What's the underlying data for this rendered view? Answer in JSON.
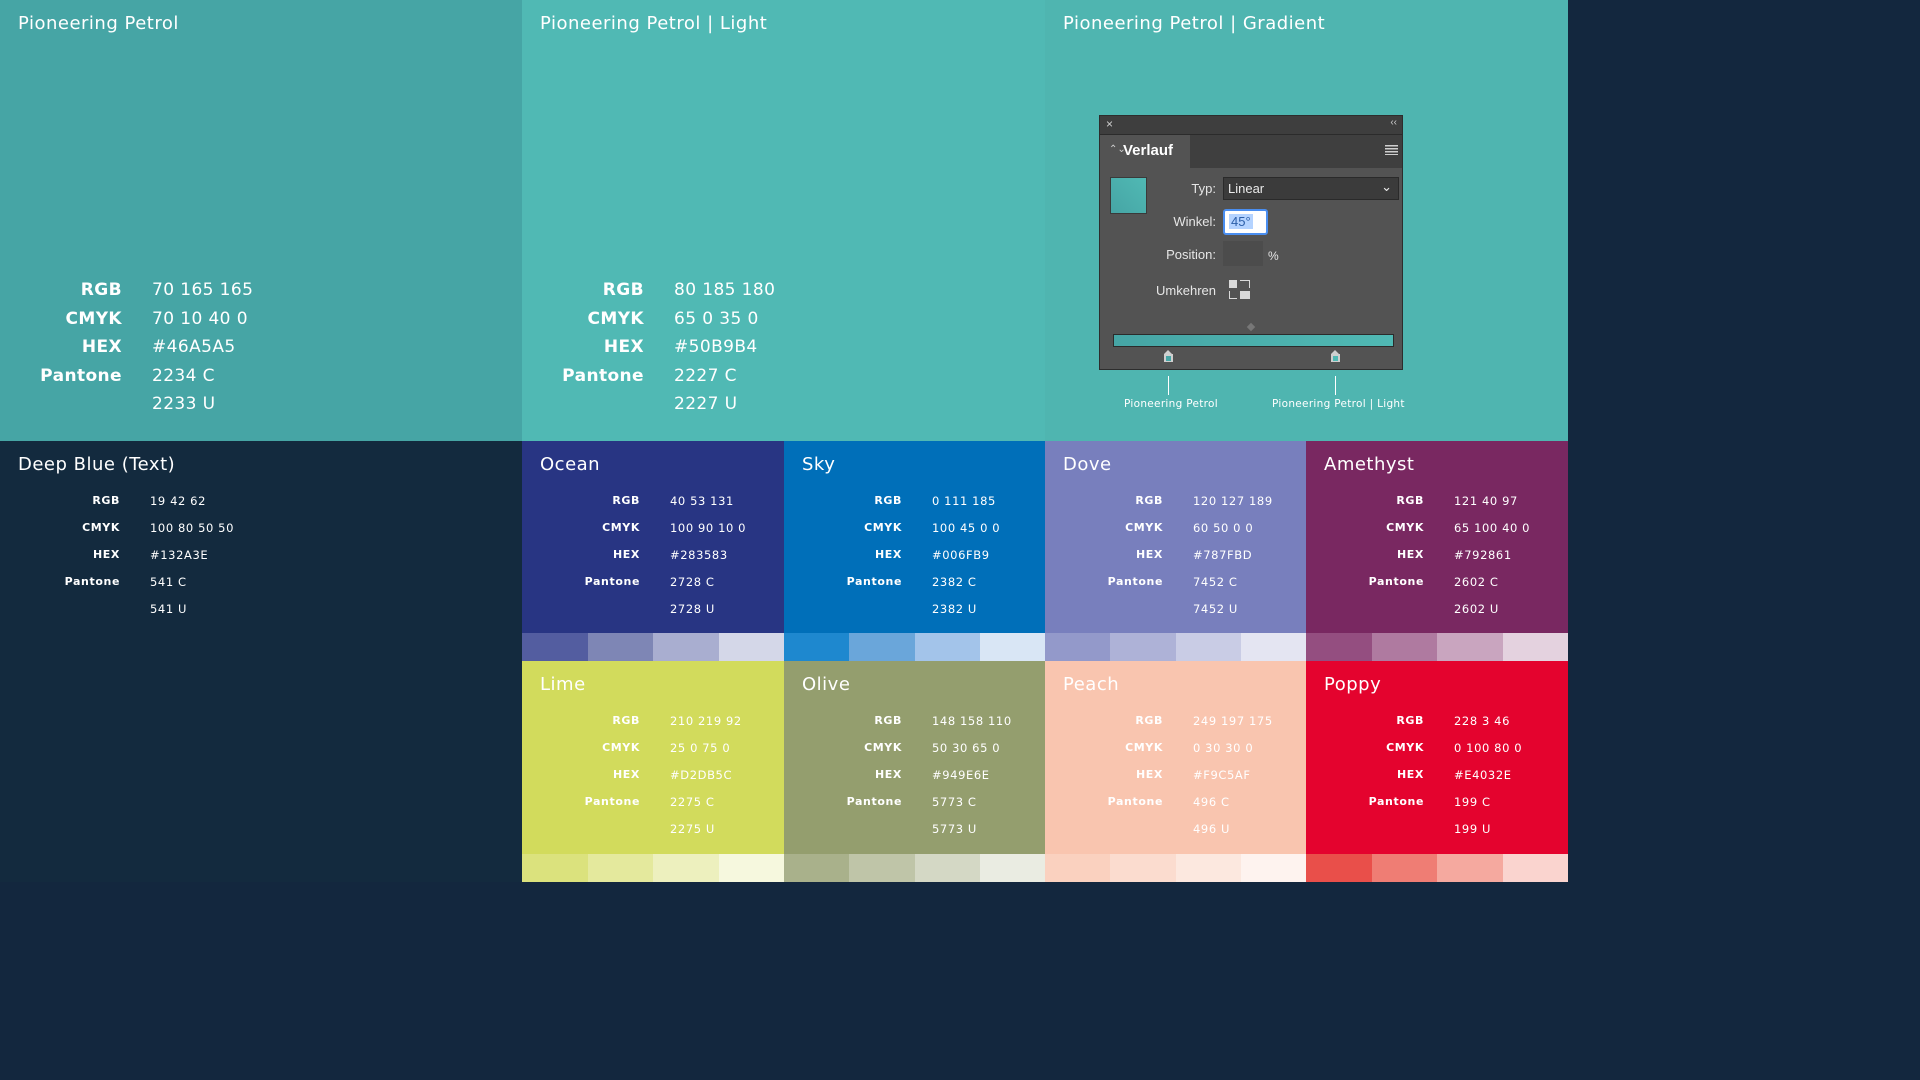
{
  "top_panels": [
    {
      "title": "Pioneering Petrol",
      "bg": "#46A5A5",
      "rgb": "70 165 165",
      "cmyk": "70 10 40 0",
      "hex": "#46A5A5",
      "pantone_c": "2234 C",
      "pantone_u": "2233 U"
    },
    {
      "title": "Pioneering Petrol | Light",
      "bg": "#50B9B4",
      "rgb": "80 185 180",
      "cmyk": "65 0 35 0",
      "hex": "#50B9B4",
      "pantone_c": "2227 C",
      "pantone_u": "2227 U"
    }
  ],
  "spec_labels": {
    "rgb": "RGB",
    "cmyk": "CMYK",
    "hex": "HEX",
    "pantone": "Pantone"
  },
  "gradient_panel": {
    "title": "Pioneering Petrol | Gradient",
    "bg": "#4FB5B0",
    "dialog": {
      "close_icon": "×",
      "collapse_icon": "‹‹",
      "tab_arrows": "⌃⌄",
      "tab_label": "Verlauf",
      "typ_label": "Typ:",
      "typ_value": "Linear",
      "winkel_label": "Winkel:",
      "winkel_value": "45°",
      "position_label": "Position:",
      "position_unit": "%",
      "umkehren_label": "Umkehren"
    },
    "stop_left_label": "Pioneering Petrol",
    "stop_right_label": "Pioneering Petrol | Light"
  },
  "deep_blue": {
    "title": "Deep Blue (Text)",
    "bg": "#132A3E",
    "rgb": "19 42 62",
    "cmyk": "100 80 50 50",
    "hex": "#132A3E",
    "pantone_c": "541 C",
    "pantone_u": "541 U"
  },
  "colors": [
    {
      "title": "Ocean",
      "bg": "#283583",
      "rgb": "40 53 131",
      "cmyk": "100 90 10 0",
      "hex": "#283583",
      "pantone_c": "2728 C",
      "pantone_u": "2728 U",
      "tints": [
        "#535DA0",
        "#7E86B5",
        "#A9AED0",
        "#D4D7E8"
      ]
    },
    {
      "title": "Sky",
      "bg": "#006FB9",
      "rgb": "0 111 185",
      "cmyk": "100 45 0 0",
      "hex": "#006FB9",
      "pantone_c": "2382 C",
      "pantone_u": "2382 U",
      "tints": [
        "#1E88CF",
        "#6AA6DA",
        "#A3C4EA",
        "#D9E6F5"
      ]
    },
    {
      "title": "Dove",
      "bg": "#787FBD",
      "rgb": "120 127 189",
      "cmyk": "60 50 0 0",
      "hex": "#787FBD",
      "pantone_c": "7452 C",
      "pantone_u": "7452 U",
      "tints": [
        "#9399CA",
        "#AEB2D7",
        "#C9CCE5",
        "#E4E5F2"
      ]
    },
    {
      "title": "Amethyst",
      "bg": "#792861",
      "rgb": "121 40 97",
      "cmyk": "65 100 40 0",
      "hex": "#792861",
      "pantone_c": "2602 C",
      "pantone_u": "2602 U",
      "tints": [
        "#944E80",
        "#AF7AA0",
        "#C9A5BF",
        "#E4D2DF"
      ]
    },
    {
      "title": "Lime",
      "bg": "#D2DB5C",
      "rgb": "210 219 92",
      "cmyk": "25 0 75 0",
      "hex": "#D2DB5C",
      "pantone_c": "2275 C",
      "pantone_u": "2275 U",
      "tints": [
        "#DBE27D",
        "#E4E99D",
        "#EDF0BE",
        "#F6F8DE"
      ]
    },
    {
      "title": "Olive",
      "bg": "#949E6E",
      "rgb": "148 158 110",
      "cmyk": "50 30 65 0",
      "hex": "#949E6E",
      "pantone_c": "5773 C",
      "pantone_u": "5773 U",
      "tints": [
        "#A9B18B",
        "#BFC5A8",
        "#D4D8C5",
        "#EAECE2"
      ]
    },
    {
      "title": "Peach",
      "bg": "#F9C5AF",
      "rgb": "249 197 175",
      "cmyk": "0 30 30 0",
      "hex": "#F9C5AF",
      "pantone_c": "496 C",
      "pantone_u": "496 U",
      "tints": [
        "#FAD1BF",
        "#FBDCCF",
        "#FCE8DF",
        "#FEF3EF"
      ]
    },
    {
      "title": "Poppy",
      "bg": "#E4032E",
      "rgb": "228 3 46",
      "cmyk": "0 100 80 0",
      "hex": "#E4032E",
      "pantone_c": "199 C",
      "pantone_u": "199 U",
      "tints": [
        "#E94F4A",
        "#EF7D74",
        "#F5A99F",
        "#FAD4CF"
      ]
    }
  ]
}
